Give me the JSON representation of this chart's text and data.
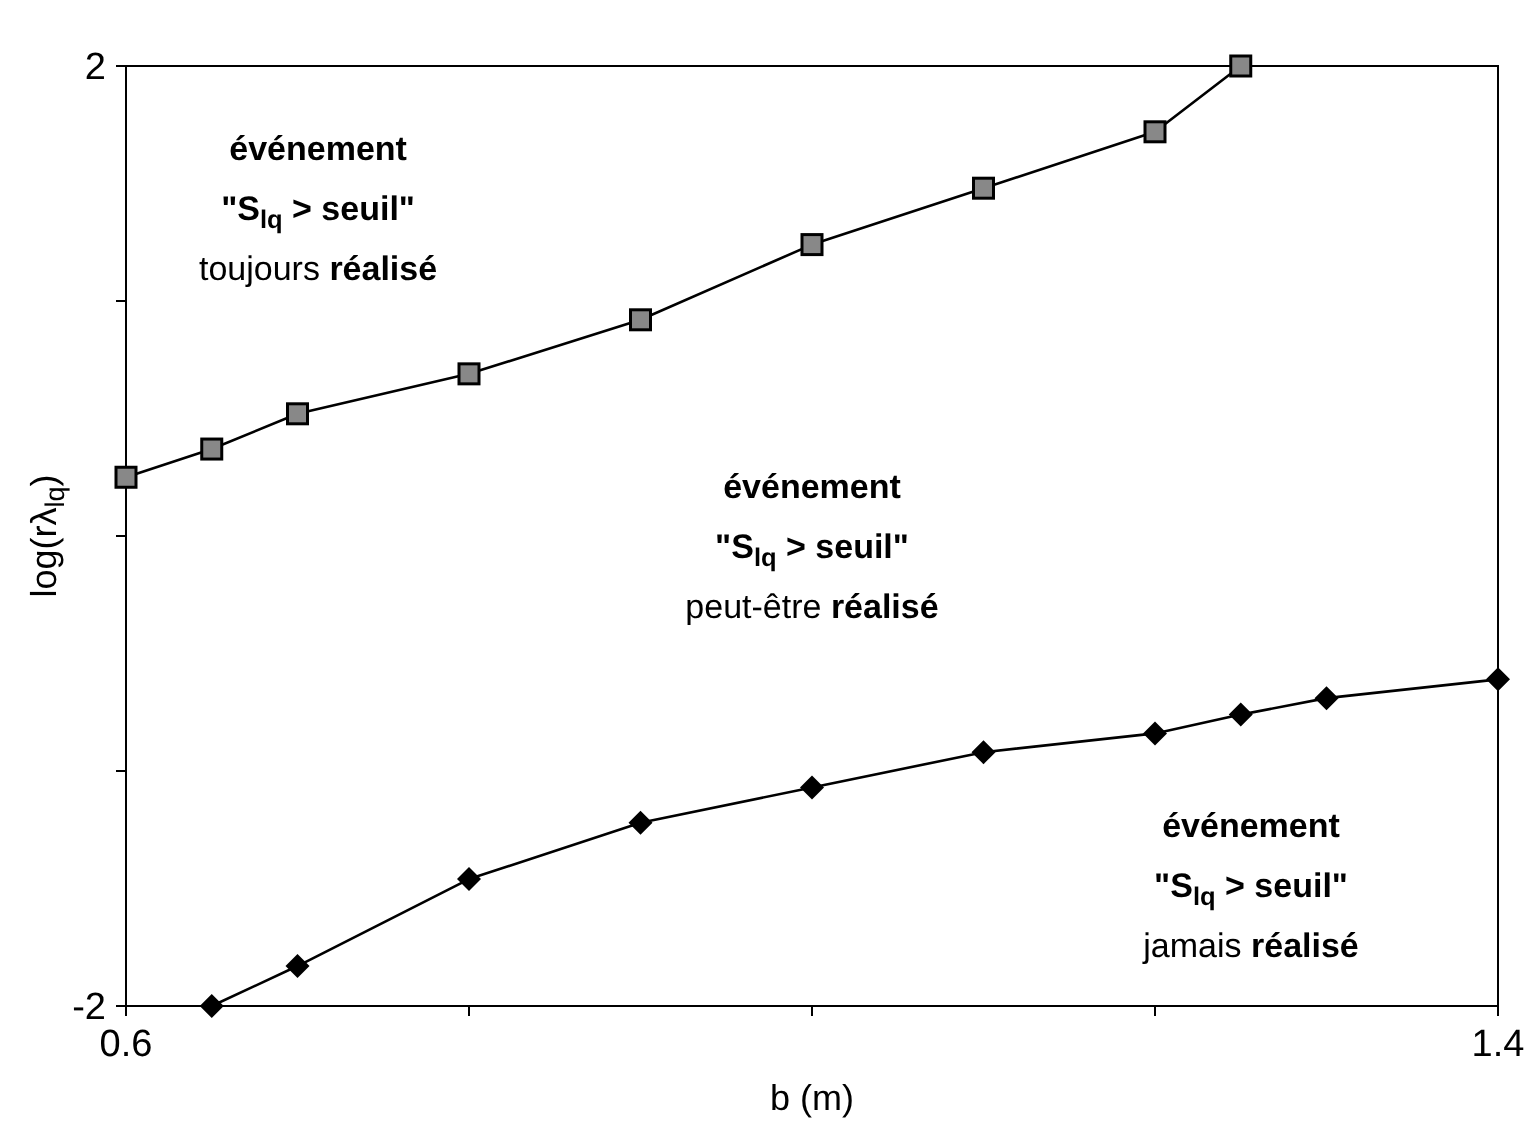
{
  "chart_data": {
    "type": "line",
    "xlabel": "b (m)",
    "ylabel": "log(rλ$_{lq}$)",
    "xlim": [
      0.6,
      1.4
    ],
    "ylim": [
      -2,
      2
    ],
    "xticks": [
      0.6,
      {
        "value": 0.8,
        "label": null
      },
      {
        "value": 1.0,
        "label": null
      },
      {
        "value": 1.2,
        "label": null
      },
      1.4
    ],
    "yticks": [
      -2,
      {
        "value": -1,
        "label": null
      },
      {
        "value": 0,
        "label": null
      },
      {
        "value": 1,
        "label": null
      },
      2
    ],
    "grid": false,
    "line_style": "solid",
    "series": [
      {
        "color": "#000000",
        "marker": "square",
        "x": [
          0.6,
          0.65,
          0.7,
          0.8,
          0.9,
          1.0,
          1.1,
          1.2,
          1.25
        ],
        "values": [
          0.25,
          0.37,
          0.52,
          0.69,
          0.92,
          1.24,
          1.48,
          1.72,
          2.0
        ]
      },
      {
        "color": "#000000",
        "marker": "diamond",
        "x": [
          0.65,
          0.7,
          0.8,
          0.9,
          1.0,
          1.1,
          1.2,
          1.25,
          1.3,
          1.4
        ],
        "values": [
          -2,
          -1.83,
          -1.46,
          -1.22,
          -1.07,
          -0.92,
          -0.84,
          -0.76,
          -0.69,
          -0.61
        ]
      }
    ],
    "annotations": [
      "événement\n\"S$_{lq}$ > seuil\"\ntoujours réalisé",
      "événement\n\"S$_{lq}$ > seuil\"\npeut-être réalisé",
      "événement\n\"S$_{lq}$ > seuil\"\njamais réalisé"
    ]
  }
}
